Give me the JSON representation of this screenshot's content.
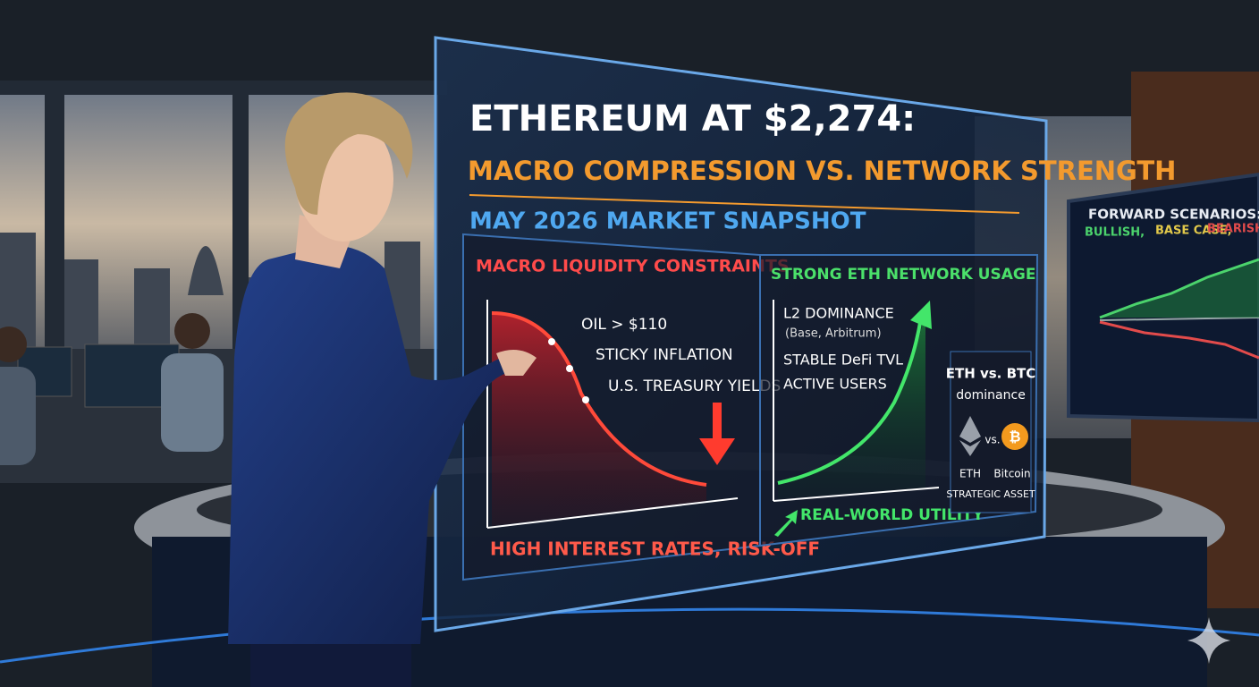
{
  "hologram": {
    "title": "ETHEREUM AT $2,274:",
    "subtitle": "MACRO COMPRESSION VS. NETWORK STRENGTH",
    "snapshot": "MAY 2026 MARKET SNAPSHOT",
    "left_panel": {
      "heading": "MACRO LIQUIDITY CONSTRAINTS",
      "points": [
        "OIL > $110",
        "STICKY INFLATION",
        "U.S. TREASURY YIELDS"
      ],
      "footer": "HIGH INTEREST RATES, RISK-OFF"
    },
    "right_panel": {
      "heading": "STRONG ETH NETWORK USAGE",
      "points": [
        "L2 DOMINANCE",
        "(Base, Arbitrum)",
        "STABLE DeFi TVL",
        "ACTIVE USERS"
      ],
      "footer": "REAL-WORLD UTILITY",
      "box": {
        "title": "ETH vs. BTC",
        "subtitle": "dominance",
        "versus": "vs.",
        "left_label": "ETH",
        "right_label": "Bitcoin",
        "footer": "STRATEGIC ASSET"
      }
    }
  },
  "monitor": {
    "title": "FORWARD SCENARIOS:",
    "scenarios": [
      "BULLISH,",
      "BASE CASE,",
      "BEARISH"
    ]
  }
}
